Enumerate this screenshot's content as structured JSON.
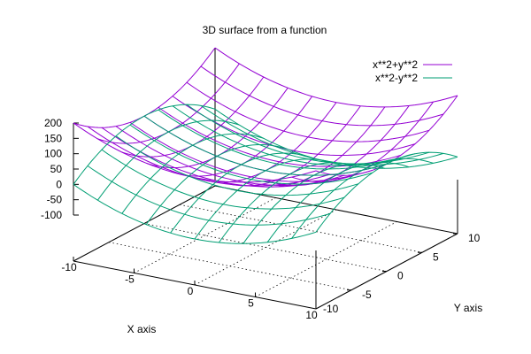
{
  "chart_data": {
    "type": "surface3d",
    "title": "3D surface from a function",
    "xlabel": "X axis",
    "ylabel": "Y axis",
    "xlim": [
      -10,
      10
    ],
    "ylim": [
      -10,
      10
    ],
    "zlim": [
      -100,
      200
    ],
    "xticks": [
      "-10",
      "-5",
      "0",
      "5",
      "10"
    ],
    "yticks": [
      "-5",
      "0",
      "5",
      "10"
    ],
    "zticks": [
      "200",
      "150",
      "100",
      "50",
      "0",
      "-50",
      "-100"
    ],
    "grid": "dotted base grid",
    "legend_position": "top-right",
    "series": [
      {
        "name": "x**2+y**2",
        "formula": "x^2+y^2",
        "color": "#9400d3"
      },
      {
        "name": "x**2-y**2",
        "formula": "x^2-y^2",
        "color": "#009e73"
      }
    ]
  }
}
